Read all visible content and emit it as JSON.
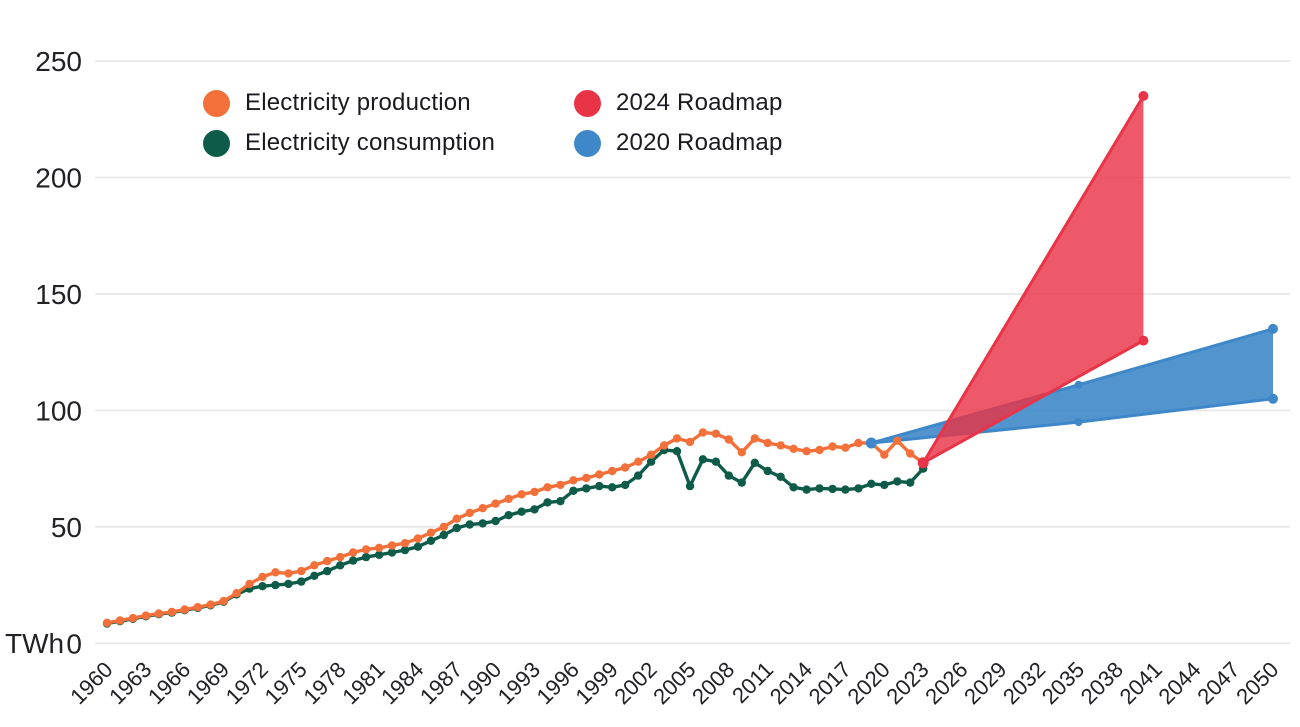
{
  "page": {
    "background": "#ffffff"
  },
  "axis": {
    "unit_label": "TWh",
    "y_ticks": [
      0,
      50,
      100,
      150,
      200,
      250
    ],
    "x_tick_years": [
      1960,
      1963,
      1966,
      1969,
      1972,
      1975,
      1978,
      1981,
      1984,
      1987,
      1990,
      1993,
      1996,
      1999,
      2002,
      2005,
      2008,
      2011,
      2014,
      2017,
      2020,
      2023,
      2026,
      2029,
      2032,
      2035,
      2038,
      2041,
      2044,
      2047,
      2050
    ]
  },
  "legend": [
    {
      "id": "electricity-production",
      "label": "Electricity production",
      "color": "#f3703a"
    },
    {
      "id": "electricity-consumption",
      "label": "Electricity consumption",
      "color": "#0d5b48"
    },
    {
      "id": "roadmap-2024",
      "label": "2024 Roadmap",
      "color": "#e93448"
    },
    {
      "id": "roadmap-2020",
      "label": "2020 Roadmap",
      "color": "#3e88c9"
    }
  ],
  "chart_data": {
    "type": "line",
    "title": "",
    "unit": "TWh",
    "xlim": [
      1960,
      2050
    ],
    "ylim": [
      0,
      250
    ],
    "grid": true,
    "legend_position": "top-left",
    "x_tick_step": 3,
    "x_label_rotation": -45,
    "x_years": [
      1960,
      1961,
      1962,
      1963,
      1964,
      1965,
      1966,
      1967,
      1968,
      1969,
      1970,
      1971,
      1972,
      1973,
      1974,
      1975,
      1976,
      1977,
      1978,
      1979,
      1980,
      1981,
      1982,
      1983,
      1984,
      1985,
      1986,
      1987,
      1988,
      1989,
      1990,
      1991,
      1992,
      1993,
      1994,
      1995,
      1996,
      1997,
      1998,
      1999,
      2000,
      2001,
      2002,
      2003,
      2004,
      2005,
      2006,
      2007,
      2008,
      2009,
      2010,
      2011,
      2012,
      2013,
      2014,
      2015,
      2016,
      2017,
      2018,
      2019,
      2020,
      2021,
      2022,
      2023
    ],
    "series": [
      {
        "id": "electricity-production",
        "name": "Electricity production",
        "color": "#f3703a",
        "values": [
          8.8,
          9.8,
          10.8,
          11.9,
          12.8,
          13.5,
          14.5,
          15.5,
          16.6,
          18.1,
          21.5,
          25.5,
          28.5,
          30.5,
          30,
          31,
          33.5,
          35.3,
          37,
          39,
          40.3,
          41,
          42,
          43,
          45,
          47.5,
          50,
          53.5,
          56,
          58,
          60,
          62,
          64,
          65,
          67,
          68,
          70,
          71,
          72.5,
          74,
          75.5,
          78,
          81,
          85,
          88,
          86.5,
          90.5,
          90,
          87.5,
          82,
          88,
          86,
          85,
          83.5,
          82.5,
          83,
          84.5,
          84,
          86,
          86,
          81,
          87,
          81.5,
          77.5
        ]
      },
      {
        "id": "electricity-consumption",
        "name": "Electricity consumption",
        "color": "#0d5b48",
        "values": [
          8.5,
          9.5,
          10.5,
          11.6,
          12.5,
          13.2,
          14.2,
          15.2,
          16.3,
          17.8,
          21,
          23.5,
          24.5,
          25,
          25.5,
          26.5,
          29,
          31,
          33.5,
          35.5,
          37,
          38,
          39,
          40,
          41.5,
          44,
          46.5,
          49.5,
          51,
          51.5,
          52.5,
          55,
          56.5,
          57.5,
          60.5,
          61,
          65.5,
          66.5,
          67.5,
          67,
          68,
          72,
          78,
          83,
          82.5,
          67.5,
          79,
          78,
          72,
          69,
          77.5,
          74,
          71.5,
          67,
          66,
          66.5,
          66.3,
          66,
          66.5,
          68.5,
          68,
          69.5,
          69,
          75
        ]
      }
    ],
    "projection_areas": [
      {
        "id": "roadmap-2020",
        "name": "2020 Roadmap",
        "color": "#3e88c9",
        "fill_opacity": 0.9,
        "apex": {
          "year": 2019,
          "value": 86
        },
        "upper": [
          {
            "year": 2035,
            "value": 111
          },
          {
            "year": 2050,
            "value": 135
          }
        ],
        "lower": [
          {
            "year": 2035,
            "value": 95
          },
          {
            "year": 2050,
            "value": 105
          }
        ]
      },
      {
        "id": "roadmap-2024",
        "name": "2024 Roadmap",
        "color": "#e93448",
        "fill_opacity": 0.82,
        "apex": {
          "year": 2023,
          "value": 77.5
        },
        "upper": [
          {
            "year": 2040,
            "value": 235
          }
        ],
        "lower": [
          {
            "year": 2040,
            "value": 130
          }
        ]
      }
    ]
  }
}
